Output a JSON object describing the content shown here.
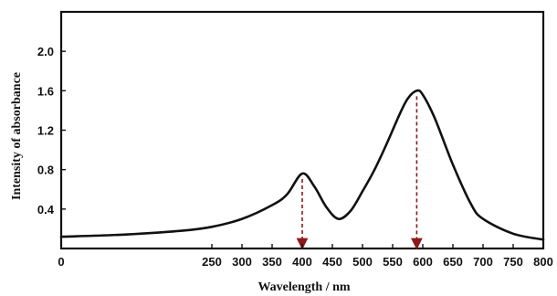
{
  "chart_data": {
    "type": "line",
    "title": "",
    "xlabel": "Wavelength / nm",
    "ylabel": "Intensity of absorbance",
    "xlim": [
      0,
      800
    ],
    "ylim": [
      0,
      2.4
    ],
    "x_ticks": [
      0,
      250,
      300,
      350,
      400,
      450,
      500,
      550,
      600,
      650,
      700,
      750,
      800
    ],
    "y_ticks": [
      0.4,
      0.8,
      1.2,
      1.6,
      2.0
    ],
    "y_tick_labels": [
      "0.4",
      "0.8",
      "1.2",
      "1.6",
      "2.0"
    ],
    "grid": false,
    "legend": "none",
    "line_color": "#111111",
    "marker_color": "#8b1a1a",
    "series": [
      {
        "x": [
          0,
          100,
          200,
          250,
          300,
          350,
          375,
          400,
          420,
          440,
          460,
          480,
          500,
          520,
          540,
          560,
          575,
          590,
          600,
          620,
          650,
          680,
          700,
          750,
          800
        ],
        "y": [
          0.12,
          0.14,
          0.18,
          0.22,
          0.3,
          0.44,
          0.55,
          0.76,
          0.63,
          0.42,
          0.3,
          0.38,
          0.58,
          0.8,
          1.06,
          1.34,
          1.52,
          1.6,
          1.56,
          1.32,
          0.85,
          0.45,
          0.3,
          0.15,
          0.09
        ]
      }
    ],
    "peak_markers": [
      {
        "x": 400,
        "y": 0.76
      },
      {
        "x": 590,
        "y": 1.6
      }
    ]
  }
}
